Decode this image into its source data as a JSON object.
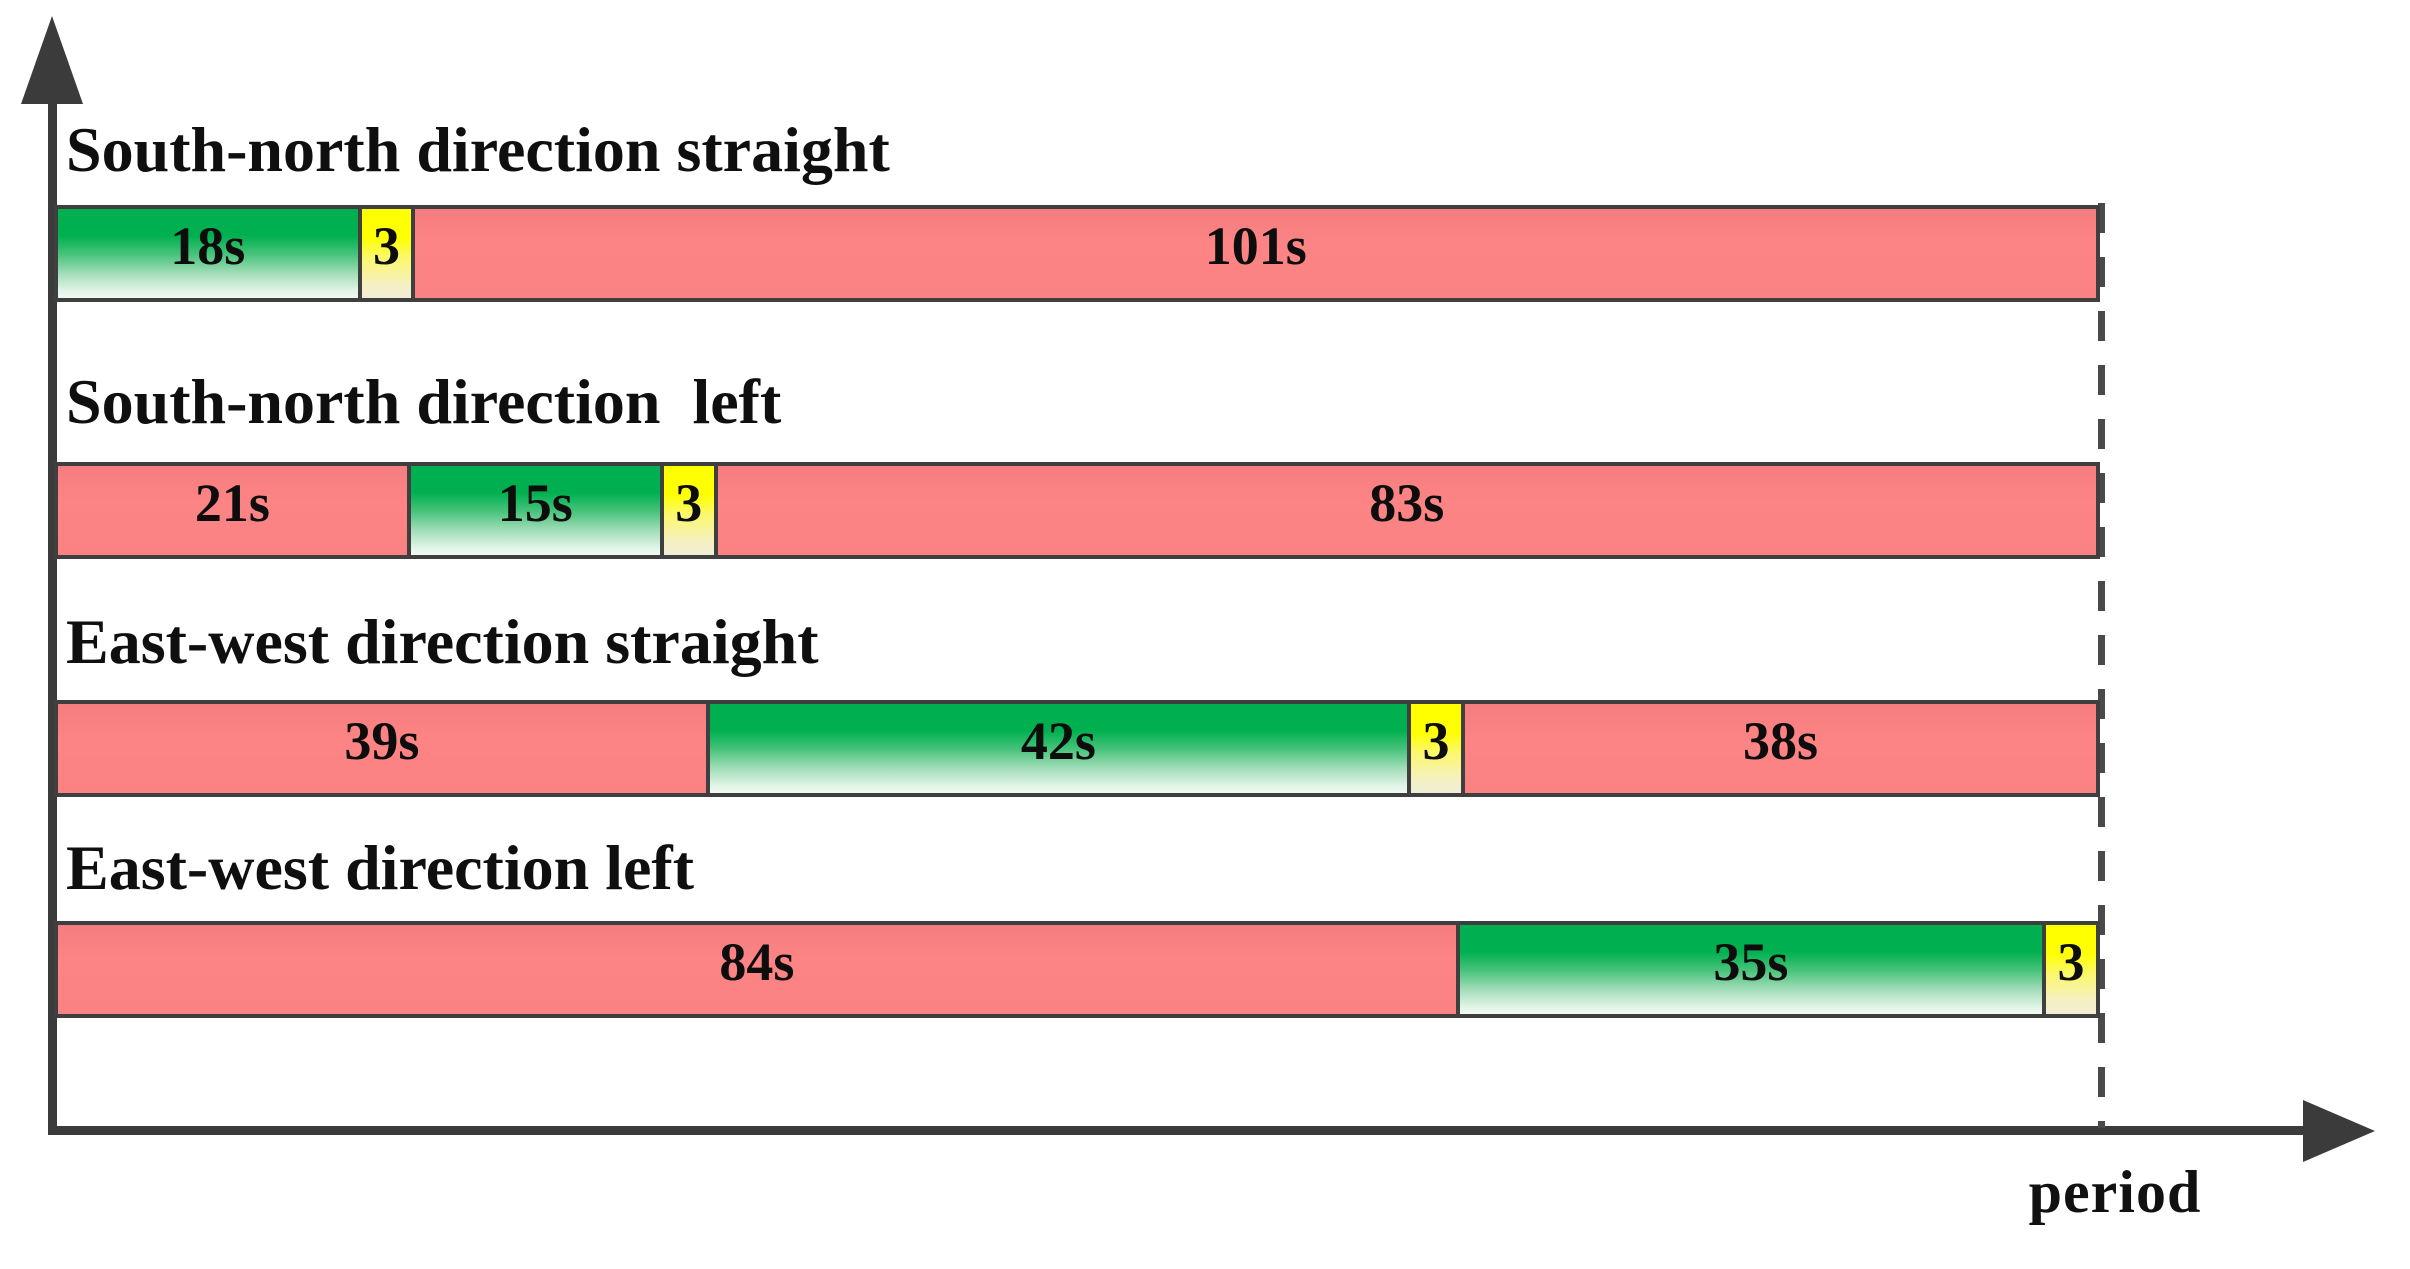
{
  "figure": {
    "x_axis_label": "period"
  },
  "chart_data": {
    "type": "bar",
    "subtype": "signal-timing-gantt",
    "title": "",
    "xlabel": "period",
    "ylabel": "",
    "unit": "seconds",
    "cycle_length_s": 122,
    "grid": false,
    "legend": false,
    "phase_colors": {
      "green_top": "#00b050",
      "green_bottom": "#f0faf2",
      "yellow_top": "#ffff00",
      "yellow_bottom": "#f0edd6",
      "red": "#fb8283",
      "axis": "#3b3b3b"
    },
    "rows": [
      {
        "label": "South-north direction straight",
        "segments": [
          {
            "phase": "green",
            "duration_s": 18,
            "label": "18s"
          },
          {
            "phase": "yellow",
            "duration_s": 3,
            "label": "3"
          },
          {
            "phase": "red",
            "duration_s": 101,
            "label": "101s"
          }
        ]
      },
      {
        "label": "South-north direction  left",
        "segments": [
          {
            "phase": "red",
            "duration_s": 21,
            "label": "21s"
          },
          {
            "phase": "green",
            "duration_s": 15,
            "label": "15s"
          },
          {
            "phase": "yellow",
            "duration_s": 3,
            "label": "3"
          },
          {
            "phase": "red",
            "duration_s": 83,
            "label": "83s"
          }
        ]
      },
      {
        "label": "East-west direction straight",
        "segments": [
          {
            "phase": "red",
            "duration_s": 39,
            "label": "39s"
          },
          {
            "phase": "green",
            "duration_s": 42,
            "label": "42s"
          },
          {
            "phase": "yellow",
            "duration_s": 3,
            "label": "3"
          },
          {
            "phase": "red",
            "duration_s": 38,
            "label": "38s"
          }
        ]
      },
      {
        "label": "East-west direction left",
        "segments": [
          {
            "phase": "red",
            "duration_s": 84,
            "label": "84s"
          },
          {
            "phase": "green",
            "duration_s": 35,
            "label": "35s"
          },
          {
            "phase": "yellow",
            "duration_s": 3,
            "label": "3"
          }
        ]
      }
    ]
  }
}
